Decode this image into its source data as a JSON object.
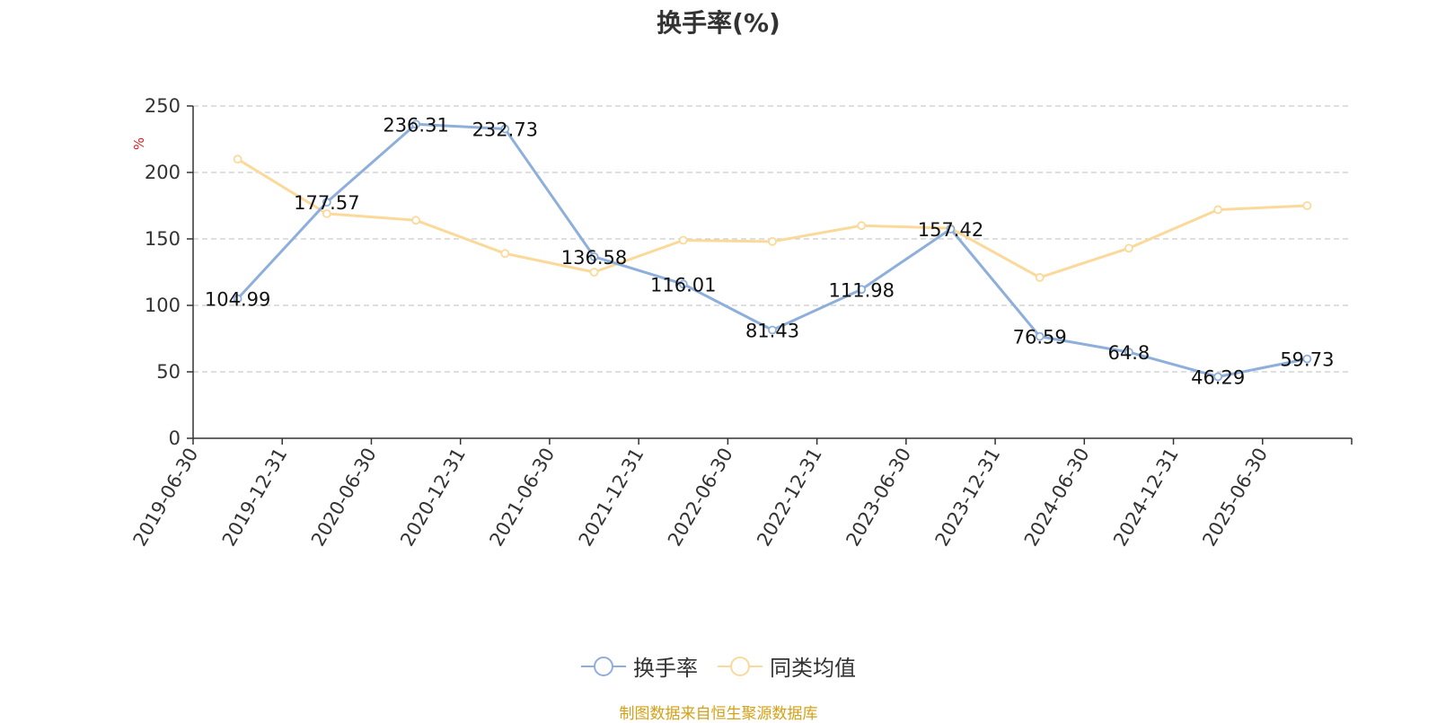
{
  "title": "换手率(%)",
  "source": "制图数据来自恒生聚源数据库",
  "colors": {
    "series1": "#8eafdb",
    "series2": "#fbd99a",
    "axis": "#333333",
    "grid": "#cccccc",
    "unit": "#e02020"
  },
  "chart_data": {
    "type": "line",
    "title": "换手率(%)",
    "ylabel": "%",
    "xlabel": "",
    "ylim": [
      0,
      250
    ],
    "yticks": [
      0,
      50,
      100,
      150,
      200,
      250
    ],
    "grid": true,
    "legend_position": "bottom-center",
    "categories": [
      "2019-06-30",
      "2019-12-31",
      "2020-06-30",
      "2020-12-31",
      "2021-06-30",
      "2021-12-31",
      "2022-06-30",
      "2022-12-31",
      "2023-06-30",
      "2023-12-31",
      "2024-06-30",
      "2024-12-31",
      "2025-06-30"
    ],
    "series": [
      {
        "name": "换手率",
        "values": [
          104.99,
          177.57,
          236.31,
          232.73,
          136.58,
          116.01,
          81.43,
          111.98,
          157.42,
          76.59,
          64.8,
          46.29,
          59.73
        ],
        "labels": [
          "104.99",
          "177.57",
          "236.31",
          "232.73",
          "136.58",
          "116.01",
          "81.43",
          "111.98",
          "157.42",
          "76.59",
          "64.8",
          "46.29",
          "59.73"
        ]
      },
      {
        "name": "同类均值",
        "values": [
          210,
          169,
          164,
          139,
          125,
          149,
          148,
          160,
          158,
          121,
          143,
          172,
          175
        ]
      }
    ]
  }
}
